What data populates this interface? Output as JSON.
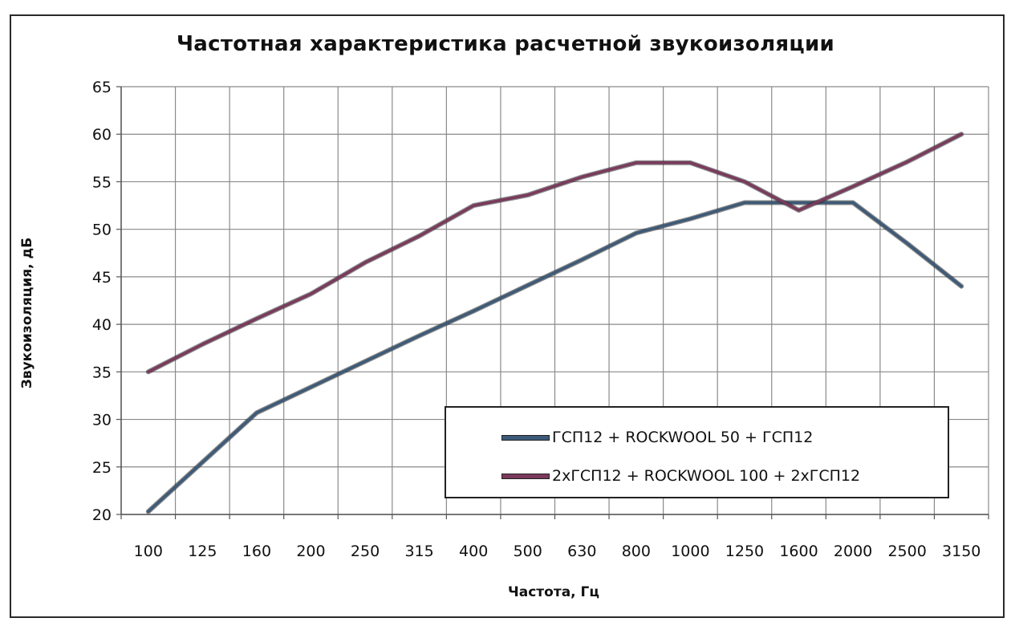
{
  "chart_data": {
    "type": "line",
    "title": "Частотная характеристика расчетной звукоизоляции",
    "xlabel": "Частота, Гц",
    "ylabel": "Звукоизоляция, дБ",
    "categories": [
      "100",
      "125",
      "160",
      "200",
      "250",
      "315",
      "400",
      "500",
      "630",
      "800",
      "1000",
      "1250",
      "1600",
      "2000",
      "2500",
      "3150"
    ],
    "ylim": [
      20,
      65
    ],
    "yticks": [
      20,
      25,
      30,
      35,
      40,
      45,
      50,
      55,
      60,
      65
    ],
    "grid": true,
    "legend_position": "bottom-right",
    "series": [
      {
        "name": "ГСП12 + ROCKWOOL 50 +  ГСП12",
        "color": "#3d5a78",
        "values": [
          20.3,
          25.5,
          30.7,
          33.4,
          36.1,
          38.8,
          41.4,
          44.1,
          46.8,
          49.6,
          51.1,
          52.8,
          52.8,
          52.8,
          48.5,
          44.0
        ]
      },
      {
        "name": "2хГСП12 + ROCKWOOL 100 +  2хГСП12",
        "color": "#7a3a5c",
        "values": [
          35.0,
          37.9,
          40.6,
          43.2,
          46.5,
          49.3,
          52.5,
          53.6,
          55.5,
          57.0,
          57.0,
          55.0,
          52.0,
          54.5,
          57.1,
          60.0
        ]
      }
    ]
  }
}
